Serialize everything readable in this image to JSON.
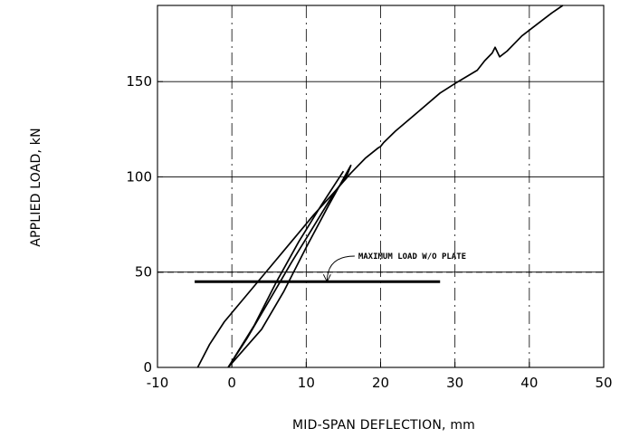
{
  "chart_data": {
    "type": "line",
    "title": "",
    "xlabel": "MID-SPAN DEFLECTION, mm",
    "ylabel": "APPLIED LOAD, kN",
    "xlim": [
      -10,
      50
    ],
    "ylim": [
      0,
      190
    ],
    "x_ticks": [
      -10,
      0,
      10,
      20,
      30,
      40,
      50
    ],
    "x_tick_labels": [
      "-10",
      "0",
      "10",
      "20",
      "30",
      "40",
      "50"
    ],
    "y_ticks": [
      0,
      50,
      100,
      150
    ],
    "y_tick_labels": [
      "0",
      "50",
      "100",
      "150"
    ],
    "grid": true,
    "series": [
      {
        "style": "solid",
        "points": [
          [
            -4.6,
            0
          ],
          [
            -3,
            12
          ],
          [
            -1,
            24
          ],
          [
            2,
            38
          ],
          [
            5,
            52
          ],
          [
            8,
            66
          ],
          [
            11,
            80
          ],
          [
            14,
            93
          ],
          [
            16,
            102
          ],
          [
            18,
            110
          ],
          [
            19.6,
            115
          ],
          [
            20,
            116
          ],
          [
            20.4,
            118
          ],
          [
            22,
            124
          ],
          [
            25,
            134
          ],
          [
            28,
            144
          ],
          [
            30,
            149
          ],
          [
            33,
            156
          ],
          [
            34,
            161
          ],
          [
            35,
            165
          ],
          [
            35.4,
            168
          ],
          [
            36,
            163
          ],
          [
            37,
            166
          ],
          [
            39,
            174
          ],
          [
            41,
            180
          ],
          [
            43,
            186
          ],
          [
            44.5,
            190
          ]
        ]
      },
      {
        "style": "solid",
        "points": [
          [
            -0.5,
            0
          ],
          [
            2,
            15
          ],
          [
            5,
            35
          ],
          [
            8,
            55
          ],
          [
            11,
            74
          ],
          [
            13.5,
            90
          ],
          [
            15.5,
            101
          ],
          [
            16,
            106
          ],
          [
            13,
            85
          ],
          [
            10,
            63
          ],
          [
            7,
            40
          ],
          [
            4,
            20
          ],
          [
            -0.5,
            0
          ]
        ]
      },
      {
        "style": "solid",
        "points": [
          [
            -0.5,
            0
          ],
          [
            3,
            22
          ],
          [
            6,
            45
          ],
          [
            9,
            66
          ],
          [
            12,
            85
          ],
          [
            15,
            103
          ]
        ]
      }
    ],
    "reference_lines": [
      {
        "style": "thick-solid",
        "y": 45,
        "x_range": [
          -5,
          28
        ]
      },
      {
        "style": "dashed",
        "y": 50,
        "x_range": [
          -10,
          50
        ]
      }
    ],
    "annotations": [
      {
        "text": "MAXIMUM LOAD W/O PLATE",
        "x": 17,
        "y": 57,
        "arrow_to": [
          12.8,
          45
        ]
      }
    ]
  },
  "colors": {
    "line": "#000000",
    "grid": "#000000",
    "background": "#ffffff"
  }
}
